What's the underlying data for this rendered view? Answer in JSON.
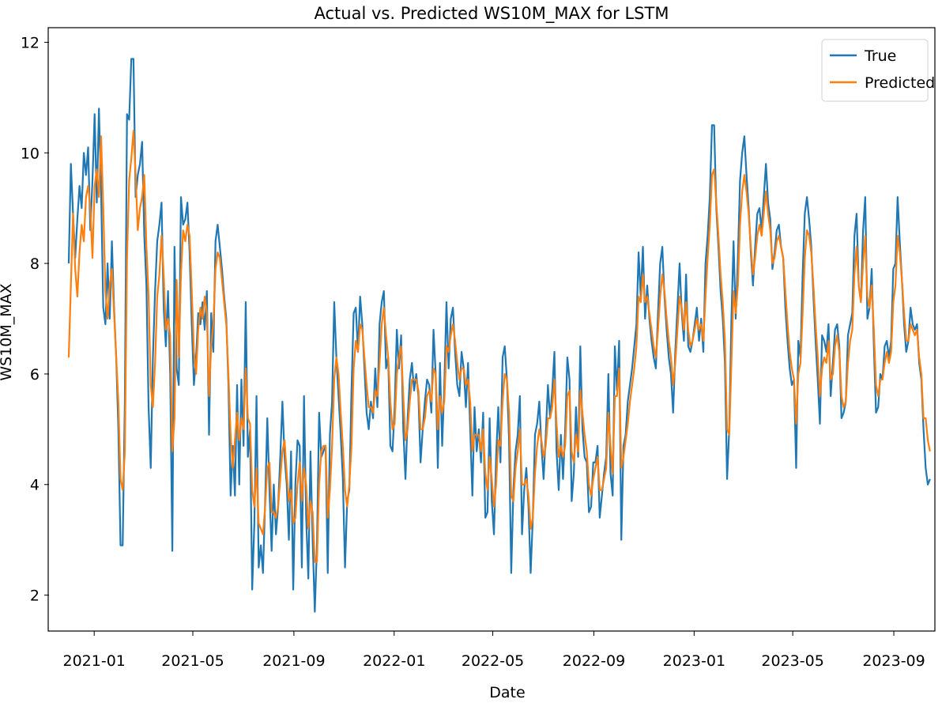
{
  "chart_data": {
    "type": "line",
    "title": "Actual vs. Predicted WS10M_MAX for LSTM",
    "xlabel": "Date",
    "ylabel": "WS10M_MAX",
    "x_start": "2020-12-01",
    "x_end": "2023-10-15",
    "xlim": [
      "2020-11-07",
      "2023-10-20"
    ],
    "ylim": [
      1.35,
      12.25
    ],
    "x_ticks": [
      "2021-01-01",
      "2021-05-01",
      "2021-09-01",
      "2022-01-01",
      "2022-05-01",
      "2022-09-01",
      "2023-01-01",
      "2023-05-01",
      "2023-09-01"
    ],
    "x_tick_labels": [
      "2021-01",
      "2021-05",
      "2021-09",
      "2022-01",
      "2022-05",
      "2022-09",
      "2023-01",
      "2023-05",
      "2023-09"
    ],
    "y_ticks": [
      2,
      4,
      6,
      8,
      10,
      12
    ],
    "grid": false,
    "legend_position": "top-right",
    "series": [
      {
        "name": "True",
        "color": "#1f77b4",
        "values": [
          8.0,
          9.8,
          8.9,
          8.1,
          8.8,
          9.4,
          9.0,
          10.0,
          9.6,
          10.1,
          8.6,
          9.5,
          10.7,
          9.1,
          10.8,
          9.3,
          7.2,
          6.9,
          8.0,
          7.0,
          8.4,
          7.2,
          6.3,
          5.0,
          2.9,
          2.9,
          5.5,
          10.7,
          10.6,
          11.7,
          11.7,
          9.2,
          9.6,
          9.8,
          10.2,
          8.5,
          7.6,
          5.4,
          4.3,
          6.3,
          7.5,
          8.4,
          8.7,
          9.1,
          7.2,
          6.5,
          7.5,
          6.0,
          2.8,
          8.3,
          6.1,
          5.8,
          9.2,
          8.7,
          8.8,
          9.1,
          8.2,
          6.9,
          5.8,
          6.3,
          7.1,
          6.9,
          7.3,
          6.8,
          7.5,
          4.9,
          7.1,
          6.4,
          8.4,
          8.7,
          8.3,
          7.9,
          7.4,
          7.0,
          5.8,
          3.8,
          4.7,
          3.8,
          5.8,
          4.0,
          5.9,
          4.7,
          7.3,
          4.5,
          5.0,
          2.1,
          3.3,
          5.6,
          2.5,
          2.9,
          2.4,
          3.7,
          5.2,
          3.9,
          2.8,
          4.0,
          3.1,
          3.6,
          4.5,
          5.5,
          4.5,
          4.0,
          3.0,
          4.6,
          2.1,
          4.0,
          4.8,
          4.7,
          2.5,
          5.6,
          3.4,
          2.3,
          4.6,
          3.0,
          1.7,
          2.9,
          5.3,
          4.5,
          4.6,
          4.7,
          2.4,
          4.9,
          5.5,
          7.3,
          6.3,
          5.6,
          4.9,
          4.1,
          2.5,
          3.7,
          3.9,
          5.7,
          7.1,
          7.2,
          6.4,
          7.4,
          6.9,
          6.1,
          5.3,
          5.0,
          5.5,
          5.2,
          6.1,
          5.4,
          6.9,
          7.3,
          7.5,
          6.1,
          6.3,
          4.7,
          4.6,
          5.4,
          6.8,
          6.1,
          6.7,
          5.0,
          4.1,
          5.2,
          5.9,
          6.2,
          5.7,
          6.0,
          5.6,
          4.4,
          5.0,
          5.5,
          5.9,
          5.8,
          5.3,
          6.8,
          6.0,
          4.3,
          6.2,
          4.7,
          5.8,
          7.3,
          6.1,
          7.0,
          7.2,
          6.4,
          5.8,
          5.6,
          6.4,
          6.1,
          5.4,
          6.2,
          5.0,
          3.8,
          5.4,
          4.6,
          5.0,
          4.4,
          5.3,
          3.4,
          3.5,
          5.2,
          3.7,
          3.1,
          4.5,
          5.4,
          4.4,
          6.3,
          6.5,
          5.9,
          4.8,
          2.4,
          3.9,
          4.6,
          4.9,
          5.6,
          3.1,
          3.9,
          4.3,
          3.6,
          2.4,
          3.4,
          4.9,
          5.1,
          5.5,
          4.7,
          4.1,
          4.9,
          5.8,
          5.2,
          5.7,
          6.4,
          4.6,
          3.9,
          4.9,
          4.1,
          5.0,
          6.3,
          5.9,
          3.7,
          4.2,
          5.4,
          4.5,
          6.5,
          5.0,
          4.5,
          4.4,
          3.5,
          3.6,
          4.4,
          4.4,
          4.7,
          3.4,
          3.8,
          4.2,
          4.5,
          6.0,
          4.2,
          3.8,
          6.5,
          5.7,
          6.6,
          3.0,
          4.7,
          4.9,
          5.5,
          5.8,
          6.1,
          6.5,
          6.9,
          8.2,
          7.4,
          8.3,
          7.0,
          7.6,
          7.0,
          6.6,
          6.3,
          6.1,
          7.1,
          8.0,
          8.3,
          7.4,
          6.8,
          6.3,
          6.0,
          5.3,
          6.4,
          7.2,
          8.0,
          7.1,
          6.6,
          7.8,
          6.5,
          6.4,
          6.6,
          6.9,
          7.2,
          6.6,
          7.0,
          6.4,
          8.0,
          8.5,
          9.2,
          10.5,
          10.5,
          9.0,
          8.3,
          7.5,
          7.0,
          6.2,
          4.1,
          5.0,
          7.0,
          8.4,
          7.0,
          8.1,
          9.5,
          10.0,
          10.3,
          9.6,
          9.0,
          8.2,
          7.6,
          8.3,
          8.9,
          9.0,
          8.6,
          9.2,
          9.8,
          9.1,
          8.8,
          7.9,
          8.2,
          8.6,
          8.7,
          8.3,
          8.1,
          7.2,
          6.6,
          6.1,
          5.8,
          5.9,
          4.3,
          6.6,
          6.3,
          7.8,
          8.9,
          9.2,
          8.8,
          8.3,
          7.4,
          6.6,
          5.9,
          5.1,
          6.7,
          6.6,
          6.4,
          6.9,
          5.6,
          6.2,
          6.8,
          6.9,
          6.5,
          5.2,
          5.3,
          5.5,
          6.7,
          6.9,
          7.1,
          8.5,
          8.9,
          7.6,
          7.3,
          8.6,
          9.2,
          7.0,
          7.2,
          7.9,
          6.5,
          5.3,
          5.4,
          6.0,
          5.9,
          6.5,
          6.6,
          6.3,
          6.6,
          7.9,
          8.0,
          9.2,
          8.4,
          7.7,
          6.9,
          6.4,
          6.6,
          7.2,
          6.9,
          6.8,
          6.9,
          6.2,
          5.9,
          5.0,
          4.3,
          4.0,
          4.1
        ]
      },
      {
        "name": "Predicted",
        "color": "#ff7f0e",
        "values": [
          6.3,
          7.6,
          8.9,
          7.9,
          7.4,
          8.2,
          8.7,
          8.4,
          9.2,
          9.4,
          9.0,
          8.1,
          9.4,
          9.7,
          9.2,
          10.3,
          9.0,
          7.5,
          7.0,
          7.6,
          7.9,
          7.1,
          6.3,
          5.5,
          4.1,
          3.9,
          4.6,
          8.1,
          9.5,
          9.9,
          10.4,
          9.6,
          8.6,
          9.0,
          9.2,
          9.6,
          8.3,
          7.4,
          5.8,
          5.4,
          6.2,
          7.4,
          7.8,
          8.5,
          7.8,
          6.8,
          7.0,
          6.7,
          4.6,
          5.2,
          7.7,
          6.3,
          7.8,
          8.6,
          8.4,
          8.7,
          8.5,
          7.5,
          6.4,
          6.0,
          6.8,
          7.2,
          7.0,
          7.4,
          7.1,
          5.6,
          6.5,
          6.9,
          7.9,
          8.2,
          8.1,
          7.7,
          7.3,
          6.9,
          6.0,
          4.9,
          4.3,
          4.8,
          5.3,
          4.8,
          5.2,
          5.0,
          6.1,
          5.2,
          5.1,
          3.9,
          3.6,
          4.3,
          3.3,
          3.2,
          3.1,
          3.6,
          4.3,
          4.4,
          3.5,
          3.5,
          3.4,
          3.6,
          4.1,
          4.6,
          4.8,
          4.2,
          3.7,
          3.9,
          3.3,
          3.4,
          4.0,
          4.4,
          3.7,
          4.3,
          4.0,
          3.2,
          3.7,
          3.5,
          2.6,
          2.6,
          4.0,
          4.6,
          4.7,
          4.7,
          3.4,
          3.9,
          4.7,
          5.9,
          6.3,
          6.0,
          5.3,
          4.7,
          3.9,
          3.6,
          4.0,
          4.7,
          6.1,
          6.6,
          6.4,
          6.9,
          6.8,
          6.3,
          5.8,
          5.4,
          5.4,
          5.3,
          5.7,
          5.6,
          6.2,
          6.9,
          7.2,
          6.7,
          6.3,
          5.5,
          5.0,
          5.1,
          6.0,
          6.3,
          6.5,
          5.6,
          4.8,
          5.0,
          5.5,
          5.9,
          5.9,
          5.9,
          5.7,
          5.0,
          5.0,
          5.2,
          5.6,
          5.7,
          5.5,
          6.1,
          6.0,
          5.0,
          5.6,
          5.3,
          5.5,
          6.5,
          6.4,
          6.7,
          6.9,
          6.6,
          6.2,
          5.9,
          6.1,
          6.1,
          5.8,
          5.9,
          5.5,
          4.6,
          4.9,
          4.9,
          4.9,
          4.6,
          5.0,
          4.2,
          3.9,
          4.5,
          4.1,
          3.6,
          4.0,
          4.8,
          4.7,
          5.5,
          6.0,
          5.9,
          5.3,
          3.8,
          3.7,
          4.3,
          4.6,
          5.0,
          4.0,
          4.0,
          4.1,
          3.8,
          3.2,
          3.4,
          4.2,
          4.7,
          5.0,
          4.8,
          4.5,
          4.7,
          5.2,
          5.2,
          5.4,
          5.9,
          5.1,
          4.5,
          4.7,
          4.5,
          4.7,
          5.6,
          5.7,
          4.6,
          4.4,
          4.9,
          4.6,
          5.7,
          5.3,
          4.9,
          4.6,
          4.0,
          3.8,
          4.1,
          4.3,
          4.5,
          3.9,
          3.9,
          4.1,
          4.3,
          5.3,
          4.7,
          4.2,
          5.6,
          5.6,
          6.1,
          4.3,
          4.5,
          4.8,
          5.1,
          5.5,
          5.8,
          6.1,
          6.5,
          7.4,
          7.3,
          7.8,
          7.3,
          7.4,
          7.1,
          6.8,
          6.5,
          6.3,
          6.8,
          7.4,
          7.8,
          7.5,
          7.0,
          6.6,
          6.3,
          5.8,
          6.2,
          6.8,
          7.4,
          7.2,
          6.8,
          7.3,
          6.8,
          6.5,
          6.6,
          6.8,
          7.0,
          6.8,
          6.9,
          6.6,
          7.4,
          8.1,
          8.7,
          9.6,
          9.7,
          9.1,
          8.5,
          7.8,
          7.3,
          6.6,
          5.0,
          4.9,
          6.2,
          7.5,
          7.1,
          7.6,
          8.7,
          9.3,
          9.6,
          9.3,
          8.9,
          8.3,
          7.8,
          8.1,
          8.5,
          8.7,
          8.5,
          8.9,
          9.3,
          8.9,
          8.6,
          8.0,
          8.1,
          8.4,
          8.5,
          8.3,
          8.1,
          7.5,
          6.9,
          6.4,
          6.1,
          5.9,
          5.1,
          6.0,
          6.2,
          7.1,
          8.1,
          8.6,
          8.5,
          8.2,
          7.6,
          6.9,
          6.3,
          5.6,
          6.1,
          6.3,
          6.2,
          6.6,
          5.9,
          6.0,
          6.5,
          6.7,
          6.4,
          5.6,
          5.4,
          5.5,
          6.2,
          6.6,
          6.8,
          7.8,
          8.3,
          7.6,
          7.3,
          8.0,
          8.5,
          7.4,
          7.2,
          7.6,
          6.8,
          5.8,
          5.6,
          5.9,
          5.9,
          6.2,
          6.4,
          6.2,
          6.4,
          7.3,
          7.6,
          8.5,
          8.2,
          7.7,
          7.1,
          6.6,
          6.6,
          6.9,
          6.8,
          6.7,
          6.8,
          6.3,
          6.0,
          5.2,
          5.2,
          4.8,
          4.6
        ]
      }
    ]
  }
}
